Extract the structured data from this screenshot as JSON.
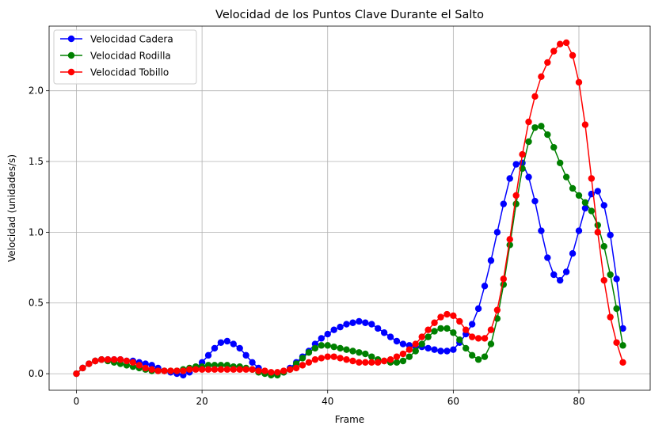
{
  "chart_data": {
    "type": "line",
    "title": "Velocidad de los Puntos Clave Durante el Salto",
    "xlabel": "Frame",
    "ylabel": "Velocidad (unidades/s)",
    "xlim": [
      -4.35,
      91.35
    ],
    "ylim": [
      -0.117,
      2.457
    ],
    "xticks": [
      0,
      20,
      40,
      60,
      80
    ],
    "yticks": [
      0.0,
      0.5,
      1.0,
      1.5,
      2.0
    ],
    "ytick_labels": [
      "0.0",
      "0.5",
      "1.0",
      "1.5",
      "2.0"
    ],
    "grid": true,
    "legend_position": "top-left",
    "x": [
      0,
      1,
      2,
      3,
      4,
      5,
      6,
      7,
      8,
      9,
      10,
      11,
      12,
      13,
      14,
      15,
      16,
      17,
      18,
      19,
      20,
      21,
      22,
      23,
      24,
      25,
      26,
      27,
      28,
      29,
      30,
      31,
      32,
      33,
      34,
      35,
      36,
      37,
      38,
      39,
      40,
      41,
      42,
      43,
      44,
      45,
      46,
      47,
      48,
      49,
      50,
      51,
      52,
      53,
      54,
      55,
      56,
      57,
      58,
      59,
      60,
      61,
      62,
      63,
      64,
      65,
      66,
      67,
      68,
      69,
      70,
      71,
      72,
      73,
      74,
      75,
      76,
      77,
      78,
      79,
      80,
      81,
      82,
      83,
      84,
      85,
      86,
      87
    ],
    "series": [
      {
        "name": "Velocidad Cadera",
        "color": "#0000ff",
        "values": [
          0.0,
          0.04,
          0.07,
          0.09,
          0.1,
          0.1,
          0.1,
          0.1,
          0.09,
          0.09,
          0.08,
          0.07,
          0.06,
          0.04,
          0.02,
          0.01,
          0.0,
          -0.01,
          0.01,
          0.04,
          0.08,
          0.13,
          0.18,
          0.22,
          0.23,
          0.21,
          0.18,
          0.13,
          0.08,
          0.04,
          0.01,
          0.0,
          0.0,
          0.01,
          0.04,
          0.08,
          0.12,
          0.16,
          0.21,
          0.25,
          0.28,
          0.31,
          0.33,
          0.35,
          0.36,
          0.37,
          0.36,
          0.35,
          0.32,
          0.29,
          0.26,
          0.23,
          0.21,
          0.2,
          0.19,
          0.19,
          0.18,
          0.17,
          0.16,
          0.16,
          0.17,
          0.22,
          0.28,
          0.35,
          0.46,
          0.62,
          0.8,
          1.0,
          1.2,
          1.38,
          1.48,
          1.49,
          1.39,
          1.22,
          1.01,
          0.82,
          0.7,
          0.66,
          0.72,
          0.85,
          1.01,
          1.17,
          1.27,
          1.29,
          1.19,
          0.98,
          0.67,
          0.32
        ]
      },
      {
        "name": "Velocidad Rodilla",
        "color": "#008000",
        "values": [
          0.0,
          0.04,
          0.07,
          0.09,
          0.1,
          0.09,
          0.08,
          0.07,
          0.06,
          0.05,
          0.04,
          0.03,
          0.02,
          0.02,
          0.02,
          0.02,
          0.02,
          0.03,
          0.04,
          0.05,
          0.05,
          0.06,
          0.06,
          0.06,
          0.06,
          0.05,
          0.05,
          0.04,
          0.03,
          0.01,
          0.0,
          -0.01,
          -0.01,
          0.01,
          0.03,
          0.07,
          0.11,
          0.15,
          0.18,
          0.2,
          0.2,
          0.19,
          0.18,
          0.17,
          0.16,
          0.15,
          0.14,
          0.12,
          0.1,
          0.09,
          0.08,
          0.08,
          0.09,
          0.12,
          0.16,
          0.21,
          0.26,
          0.3,
          0.32,
          0.32,
          0.29,
          0.24,
          0.18,
          0.13,
          0.1,
          0.12,
          0.21,
          0.39,
          0.63,
          0.91,
          1.2,
          1.45,
          1.64,
          1.74,
          1.75,
          1.69,
          1.6,
          1.49,
          1.39,
          1.31,
          1.26,
          1.21,
          1.15,
          1.05,
          0.9,
          0.7,
          0.46,
          0.2
        ]
      },
      {
        "name": "Velocidad Tobillo",
        "color": "#ff0000",
        "values": [
          0.0,
          0.04,
          0.07,
          0.09,
          0.1,
          0.1,
          0.1,
          0.1,
          0.09,
          0.08,
          0.06,
          0.04,
          0.03,
          0.02,
          0.02,
          0.02,
          0.02,
          0.02,
          0.03,
          0.03,
          0.03,
          0.03,
          0.03,
          0.03,
          0.03,
          0.03,
          0.03,
          0.03,
          0.03,
          0.02,
          0.02,
          0.01,
          0.01,
          0.02,
          0.03,
          0.04,
          0.06,
          0.08,
          0.1,
          0.11,
          0.12,
          0.12,
          0.11,
          0.1,
          0.09,
          0.08,
          0.08,
          0.08,
          0.08,
          0.09,
          0.1,
          0.12,
          0.14,
          0.17,
          0.21,
          0.26,
          0.31,
          0.36,
          0.4,
          0.42,
          0.41,
          0.37,
          0.31,
          0.26,
          0.25,
          0.25,
          0.31,
          0.45,
          0.67,
          0.95,
          1.26,
          1.55,
          1.78,
          1.96,
          2.1,
          2.2,
          2.28,
          2.33,
          2.34,
          2.25,
          2.06,
          1.76,
          1.38,
          1.0,
          0.66,
          0.4,
          0.22,
          0.08
        ]
      }
    ]
  }
}
